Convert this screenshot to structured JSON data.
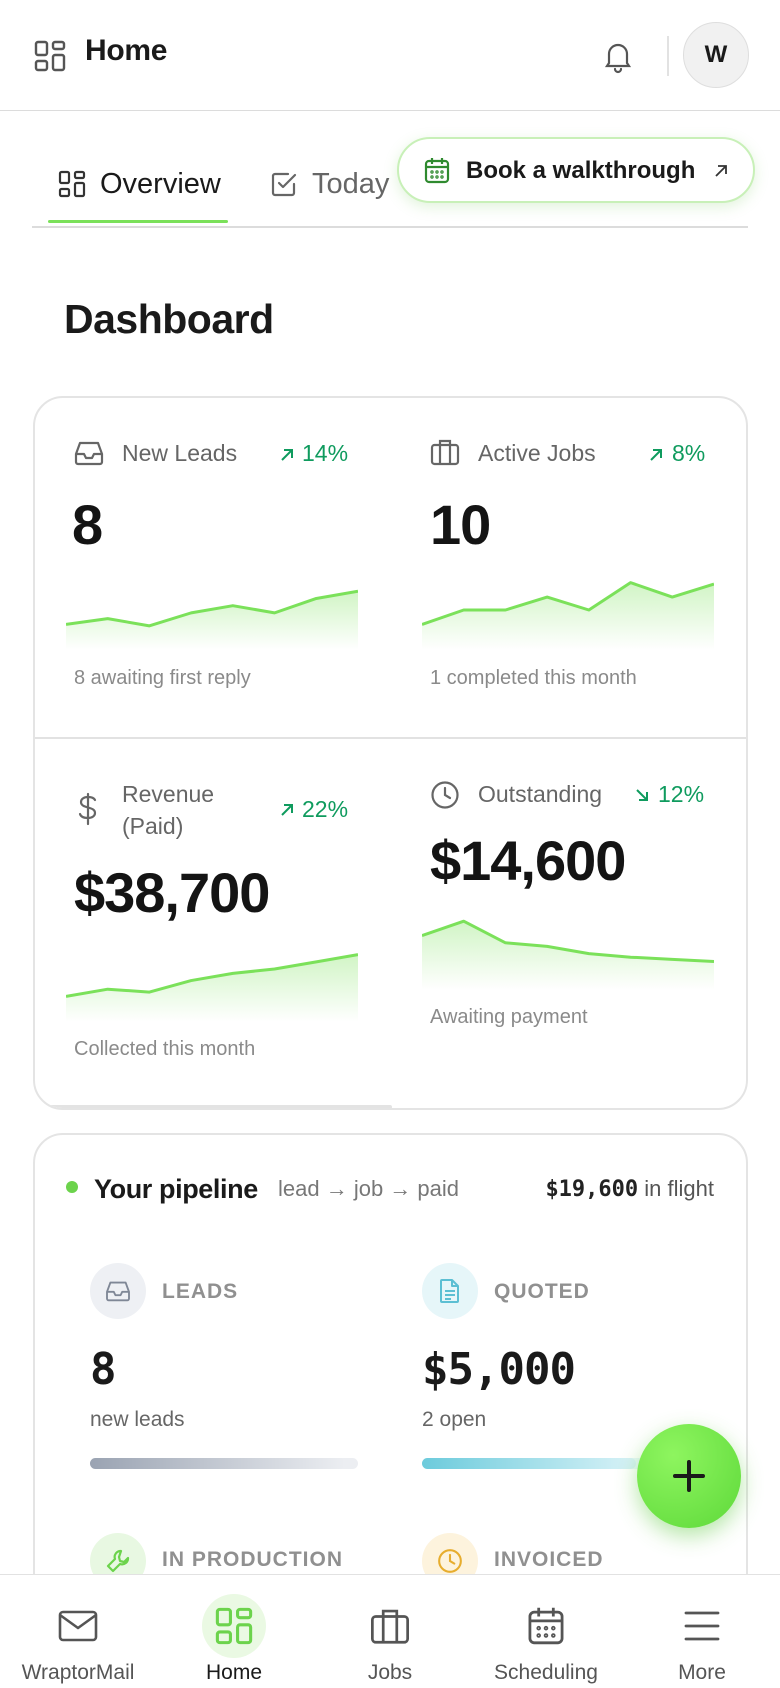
{
  "header": {
    "title": "Home",
    "avatar_initial": "W"
  },
  "tabs": [
    {
      "label": "Overview",
      "active": true
    },
    {
      "label": "Today",
      "active": false
    }
  ],
  "walkthrough": {
    "label": "Book a walkthrough"
  },
  "page_title": "Dashboard",
  "metrics": [
    {
      "label": "New Leads",
      "delta": "14%",
      "trend": "up",
      "value": "8",
      "sub": "8 awaiting first reply",
      "sparkline": [
        30,
        38,
        28,
        46,
        56,
        46,
        66,
        76
      ]
    },
    {
      "label": "Active Jobs",
      "delta": "8%",
      "trend": "up",
      "value": "10",
      "sub": "1 completed this month",
      "sparkline": [
        30,
        50,
        50,
        68,
        50,
        88,
        68,
        86
      ]
    },
    {
      "label": "Revenue",
      "label_line2": "(Paid)",
      "delta": "22%",
      "trend": "up",
      "value": "$38,700",
      "sub": "Collected this month",
      "sparkline": [
        30,
        40,
        36,
        52,
        62,
        68,
        78,
        88
      ]
    },
    {
      "label": "Outstanding",
      "delta": "12%",
      "trend": "down",
      "value": "$14,600",
      "sub": "Awaiting payment",
      "sparkline": [
        70,
        90,
        60,
        55,
        45,
        40,
        37,
        34
      ]
    }
  ],
  "pipeline": {
    "title": "Your pipeline",
    "flow": "lead → job → paid",
    "flight_amount": "$19,600",
    "flight_label": "in flight",
    "stages": [
      {
        "name": "LEADS",
        "value": "8",
        "sub": "new leads",
        "progress": 0.95,
        "icon": "inbox-icon"
      },
      {
        "name": "QUOTED",
        "value": "$5,000",
        "sub": "2 open",
        "progress": 0.8,
        "icon": "document-icon"
      },
      {
        "name": "IN PRODUCTION",
        "icon": "wrench-icon"
      },
      {
        "name": "INVOICED",
        "icon": "clock-icon"
      }
    ]
  },
  "bottom_nav": [
    {
      "label": "WraptorMail",
      "icon": "mail-icon",
      "active": false
    },
    {
      "label": "Home",
      "icon": "grid-icon",
      "active": true
    },
    {
      "label": "Jobs",
      "icon": "briefcase-icon",
      "active": false
    },
    {
      "label": "Scheduling",
      "icon": "calendar-icon",
      "active": false
    },
    {
      "label": "More",
      "icon": "menu-icon",
      "active": false
    }
  ],
  "colors": {
    "accent": "#7be15a",
    "positive": "#0f9b5e",
    "spark": "#7be15a"
  }
}
